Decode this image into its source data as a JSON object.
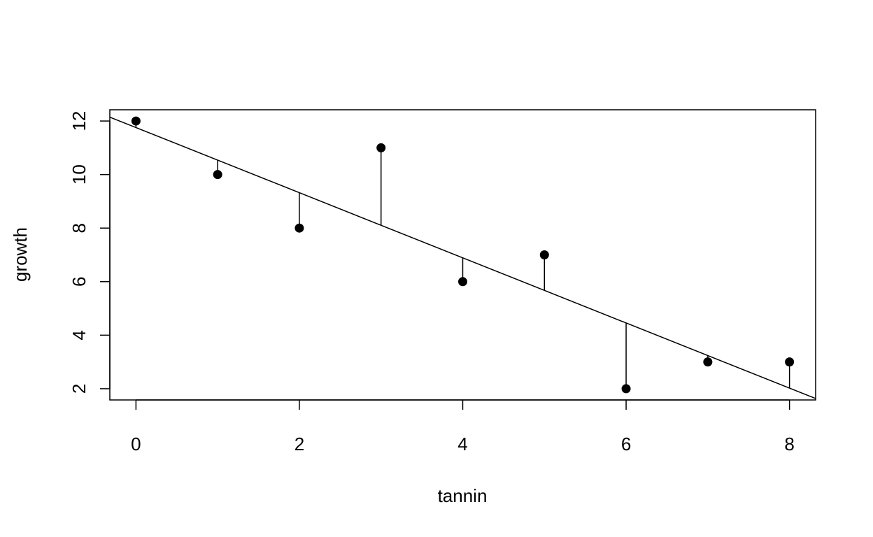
{
  "chart_data": {
    "type": "scatter",
    "x_label": "tannin",
    "y_label": "growth",
    "x": [
      0,
      1,
      2,
      3,
      4,
      5,
      6,
      7,
      8
    ],
    "y": [
      12,
      10,
      8,
      11,
      6,
      7,
      2,
      3,
      3
    ],
    "color": "#000000",
    "fit": {
      "intercept": 11.756,
      "slope": -1.2167
    },
    "xlim": [
      -0.32,
      8.32
    ],
    "xticks": [
      0,
      2,
      4,
      6,
      8
    ],
    "ylim": [
      1.58,
      12.42
    ],
    "yticks": [
      2,
      4,
      6,
      8,
      10,
      12
    ]
  }
}
